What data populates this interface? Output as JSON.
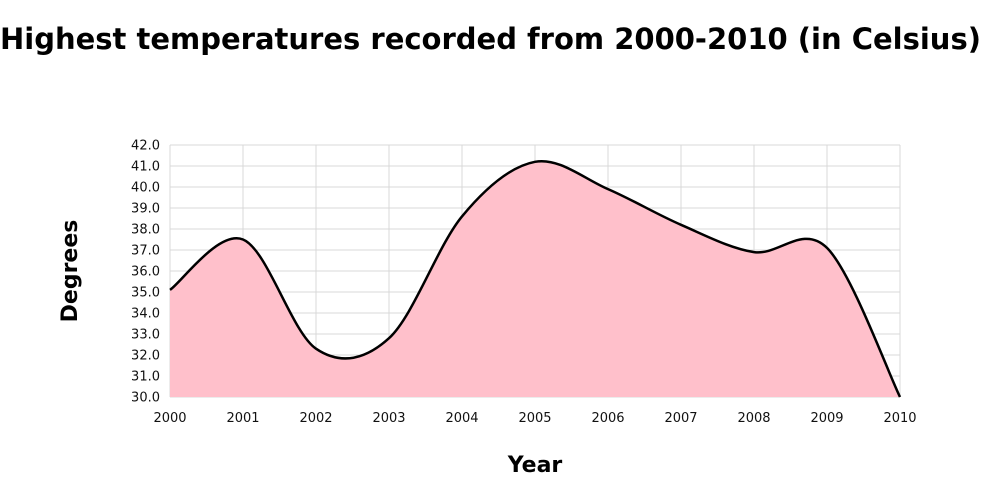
{
  "chart_data": {
    "type": "area",
    "title": "Highest temperatures recorded from 2000-2010 (in Celsius)",
    "xlabel": "Year",
    "ylabel": "Degrees",
    "x": [
      "2000",
      "2001",
      "2002",
      "2003",
      "2004",
      "2005",
      "2006",
      "2007",
      "2008",
      "2009",
      "2010"
    ],
    "series": [
      {
        "values": [
          35.1,
          37.5,
          32.3,
          32.8,
          38.6,
          41.2,
          39.9,
          38.2,
          36.9,
          37.1,
          30.0
        ]
      }
    ],
    "ylim": [
      30,
      42
    ],
    "yticks": [
      "30.0",
      "31.0",
      "32.0",
      "33.0",
      "34.0",
      "35.0",
      "36.0",
      "37.0",
      "38.0",
      "39.0",
      "40.0",
      "41.0",
      "42.0"
    ],
    "grid": true,
    "smooth": true,
    "colors": {
      "fill": "#ffc0cb",
      "line": "#000000",
      "grid": "#d9d9d9"
    }
  }
}
